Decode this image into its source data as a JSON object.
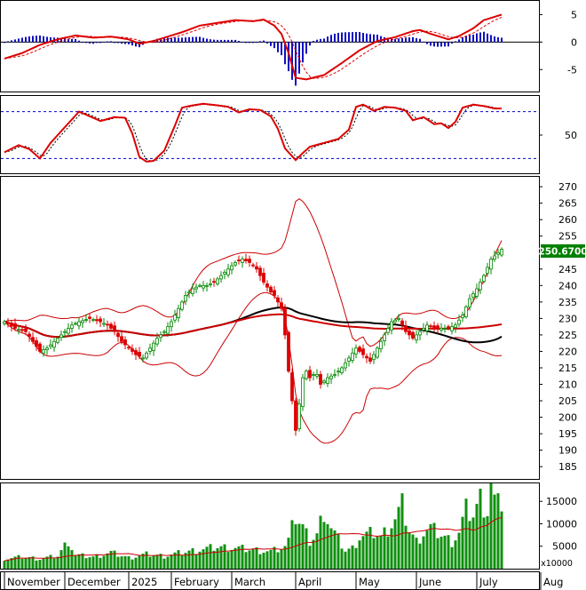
{
  "chart_data": {
    "type": "candlestick",
    "ticker_price_label": "250.6700",
    "colors": {
      "up": "#008800",
      "down": "#dd0000",
      "ma_short": "#000000",
      "ma_long": "#cc0000",
      "bollinger": "#cc0000",
      "macd": "#dd0000",
      "signal": "#dd0000",
      "histogram": "#1010c0",
      "volume": "#109010",
      "volume_ma": "#cc0000",
      "stoch_ref": "#0000cc",
      "label_bg": "#008000",
      "label_text": "#ffffff"
    },
    "x_labels": [
      "November",
      "December",
      "2025",
      "February",
      "March",
      "April",
      "May",
      "June",
      "July",
      "Aug"
    ],
    "x_label_index": [
      0,
      17,
      35,
      47,
      64,
      82,
      99,
      116,
      133,
      151
    ],
    "panels": {
      "macd": {
        "ylim": [
          -9,
          7.5
        ],
        "yticks": [
          5,
          0,
          -5
        ]
      },
      "stochastic": {
        "ylim": [
          0,
          100
        ],
        "yticks": [
          50
        ],
        "ref_lines": [
          20,
          80
        ]
      },
      "price": {
        "ylim": [
          181,
          273
        ],
        "yticks": [
          270,
          265,
          260,
          255,
          250,
          245,
          240,
          235,
          230,
          225,
          220,
          215,
          210,
          205,
          200,
          195,
          190,
          185
        ]
      },
      "volume": {
        "ylim": [
          0,
          19000
        ],
        "yticks": [
          15000,
          10000,
          5000
        ],
        "unit_label": "x10000"
      }
    },
    "close_anchors": [
      [
        0,
        229
      ],
      [
        3,
        227
      ],
      [
        6,
        226
      ],
      [
        8,
        223
      ],
      [
        10,
        220
      ],
      [
        12,
        221
      ],
      [
        15,
        224
      ],
      [
        17,
        226
      ],
      [
        19,
        228
      ],
      [
        21,
        229
      ],
      [
        24,
        230
      ],
      [
        27,
        229
      ],
      [
        29,
        228
      ],
      [
        31,
        226
      ],
      [
        33,
        223
      ],
      [
        35,
        221
      ],
      [
        37,
        219
      ],
      [
        39,
        218
      ],
      [
        41,
        221
      ],
      [
        43,
        224
      ],
      [
        45,
        226
      ],
      [
        47,
        229
      ],
      [
        49,
        233
      ],
      [
        51,
        237
      ],
      [
        53,
        239
      ],
      [
        55,
        240
      ],
      [
        57,
        240
      ],
      [
        59,
        241
      ],
      [
        61,
        243
      ],
      [
        63,
        245
      ],
      [
        65,
        247
      ],
      [
        67,
        248
      ],
      [
        69,
        247
      ],
      [
        71,
        245
      ],
      [
        73,
        241
      ],
      [
        75,
        238
      ],
      [
        76,
        237
      ],
      [
        77,
        235
      ],
      [
        78,
        233
      ],
      [
        79,
        225
      ],
      [
        80,
        214
      ],
      [
        81,
        205
      ],
      [
        82,
        196
      ],
      [
        83,
        204
      ],
      [
        84,
        212
      ],
      [
        85,
        214
      ],
      [
        86,
        212
      ],
      [
        87,
        213
      ],
      [
        88,
        213
      ],
      [
        89,
        210
      ],
      [
        91,
        212
      ],
      [
        93,
        213
      ],
      [
        95,
        215
      ],
      [
        97,
        218
      ],
      [
        99,
        221
      ],
      [
        101,
        219
      ],
      [
        103,
        217
      ],
      [
        105,
        221
      ],
      [
        107,
        225
      ],
      [
        109,
        229
      ],
      [
        111,
        230
      ],
      [
        113,
        226
      ],
      [
        115,
        224
      ],
      [
        117,
        226
      ],
      [
        119,
        228
      ],
      [
        121,
        227
      ],
      [
        123,
        227
      ],
      [
        125,
        227
      ],
      [
        127,
        228
      ],
      [
        129,
        231
      ],
      [
        131,
        236
      ],
      [
        133,
        239
      ],
      [
        135,
        243
      ],
      [
        137,
        248
      ],
      [
        139,
        250
      ],
      [
        140,
        251
      ]
    ],
    "macd_anchors": [
      [
        0,
        -3
      ],
      [
        5,
        -2
      ],
      [
        10,
        -0.5
      ],
      [
        15,
        0.5
      ],
      [
        20,
        1.2
      ],
      [
        25,
        0.8
      ],
      [
        30,
        1
      ],
      [
        35,
        0.5
      ],
      [
        38,
        -0.3
      ],
      [
        42,
        0.2
      ],
      [
        46,
        1
      ],
      [
        50,
        1.8
      ],
      [
        55,
        3
      ],
      [
        60,
        3.5
      ],
      [
        65,
        4
      ],
      [
        70,
        3.8
      ],
      [
        73,
        4.1
      ],
      [
        76,
        3
      ],
      [
        78,
        1.5
      ],
      [
        80,
        -2
      ],
      [
        82,
        -6.5
      ],
      [
        85,
        -6.8
      ],
      [
        90,
        -6
      ],
      [
        95,
        -3.8
      ],
      [
        100,
        -1.5
      ],
      [
        105,
        0.2
      ],
      [
        110,
        0.9
      ],
      [
        115,
        2
      ],
      [
        117,
        2.2
      ],
      [
        120,
        1.5
      ],
      [
        125,
        0.5
      ],
      [
        128,
        1.1
      ],
      [
        132,
        2.5
      ],
      [
        135,
        4
      ],
      [
        138,
        4.6
      ],
      [
        140,
        5
      ]
    ],
    "stoch_anchors": [
      [
        0,
        28
      ],
      [
        4,
        37
      ],
      [
        7,
        32
      ],
      [
        10,
        20
      ],
      [
        13,
        40
      ],
      [
        17,
        60
      ],
      [
        21,
        80
      ],
      [
        23,
        76
      ],
      [
        27,
        68
      ],
      [
        31,
        73
      ],
      [
        34,
        72
      ],
      [
        36,
        52
      ],
      [
        38,
        22
      ],
      [
        40,
        16
      ],
      [
        42,
        17
      ],
      [
        45,
        30
      ],
      [
        48,
        62
      ],
      [
        50,
        85
      ],
      [
        53,
        88
      ],
      [
        56,
        90
      ],
      [
        60,
        88
      ],
      [
        63,
        86
      ],
      [
        66,
        79
      ],
      [
        69,
        83
      ],
      [
        72,
        82
      ],
      [
        75,
        74
      ],
      [
        77,
        58
      ],
      [
        79,
        33
      ],
      [
        82,
        18
      ],
      [
        84,
        27
      ],
      [
        86,
        35
      ],
      [
        90,
        40
      ],
      [
        94,
        45
      ],
      [
        97,
        57
      ],
      [
        99,
        86
      ],
      [
        101,
        89
      ],
      [
        104,
        81
      ],
      [
        107,
        86
      ],
      [
        110,
        85
      ],
      [
        113,
        81
      ],
      [
        115,
        69
      ],
      [
        118,
        73
      ],
      [
        121,
        64
      ],
      [
        123,
        65
      ],
      [
        125,
        59
      ],
      [
        127,
        67
      ],
      [
        129,
        85
      ],
      [
        132,
        89
      ],
      [
        135,
        87
      ],
      [
        138,
        84
      ],
      [
        140,
        84
      ]
    ],
    "volume_anchors": [
      [
        0,
        2200
      ],
      [
        5,
        2600
      ],
      [
        10,
        2200
      ],
      [
        15,
        2800
      ],
      [
        18,
        6200
      ],
      [
        20,
        3000
      ],
      [
        25,
        2600
      ],
      [
        30,
        3600
      ],
      [
        35,
        2400
      ],
      [
        40,
        3200
      ],
      [
        45,
        2800
      ],
      [
        50,
        3600
      ],
      [
        55,
        4200
      ],
      [
        60,
        4800
      ],
      [
        65,
        4600
      ],
      [
        70,
        4200
      ],
      [
        75,
        3800
      ],
      [
        79,
        4800
      ],
      [
        80,
        6000
      ],
      [
        81,
        13500
      ],
      [
        82,
        11000
      ],
      [
        84,
        9000
      ],
      [
        86,
        6000
      ],
      [
        88,
        7500
      ],
      [
        90,
        13000
      ],
      [
        92,
        9000
      ],
      [
        94,
        6500
      ],
      [
        96,
        4000
      ],
      [
        98,
        4500
      ],
      [
        100,
        7000
      ],
      [
        102,
        7500
      ],
      [
        104,
        8000
      ],
      [
        106,
        7000
      ],
      [
        108,
        9000
      ],
      [
        110,
        11000
      ],
      [
        112,
        14000
      ],
      [
        114,
        8500
      ],
      [
        116,
        6000
      ],
      [
        118,
        8000
      ],
      [
        120,
        9000
      ],
      [
        122,
        8000
      ],
      [
        124,
        7000
      ],
      [
        126,
        6000
      ],
      [
        128,
        8000
      ],
      [
        130,
        13000
      ],
      [
        132,
        12000
      ],
      [
        134,
        15500
      ],
      [
        136,
        13000
      ],
      [
        137,
        19000
      ],
      [
        138,
        15000
      ],
      [
        139,
        14000
      ],
      [
        140,
        15000
      ]
    ]
  }
}
